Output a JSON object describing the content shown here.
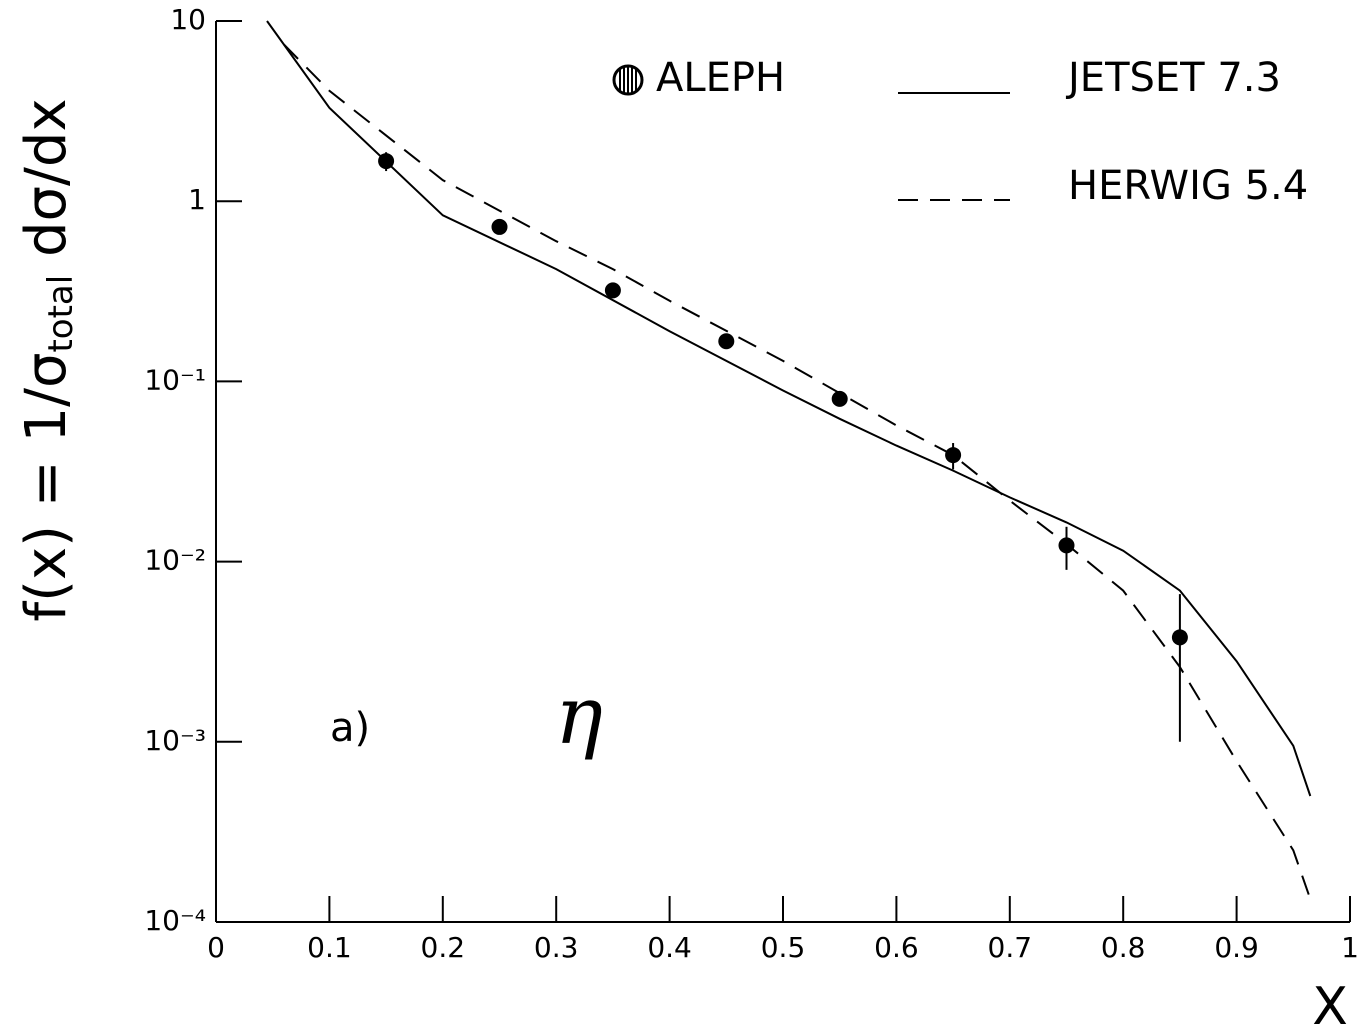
{
  "chart_data": {
    "type": "scatter",
    "x_label": "X",
    "y_label": "f(x) = 1/σ",
    "y_label_sub": "total",
    "y_label_end": " dσ/dx",
    "xlim": [
      0,
      1
    ],
    "ylim": [
      0.0001,
      10
    ],
    "log_y": true,
    "xticks": [
      0,
      0.1,
      0.2,
      0.3,
      0.4,
      0.5,
      0.6,
      0.7,
      0.8,
      0.9,
      1
    ],
    "yticks": [
      {
        "value": 0.0001,
        "label": "10⁻⁴"
      },
      {
        "value": 0.001,
        "label": "10⁻³"
      },
      {
        "value": 0.01,
        "label": "10⁻²"
      },
      {
        "value": 0.1,
        "label": "10⁻¹"
      },
      1,
      10
    ],
    "series": [
      {
        "name": "ALEPH",
        "kind": "points",
        "color": "#000000",
        "x": [
          0.15,
          0.25,
          0.35,
          0.45,
          0.55,
          0.65,
          0.75,
          0.85
        ],
        "values": [
          1.67,
          0.72,
          0.32,
          0.167,
          0.08,
          0.039,
          0.0123,
          0.0038
        ],
        "errors": [
          0.2,
          0.05,
          0.02,
          0.015,
          0.006,
          0.0065,
          0.0033,
          0.0028
        ]
      },
      {
        "name": "JETSET 7.3",
        "kind": "line",
        "dashed": false,
        "color": "#000000",
        "x": [
          0.045,
          0.1,
          0.2,
          0.3,
          0.4,
          0.5,
          0.55,
          0.6,
          0.65,
          0.7,
          0.75,
          0.8,
          0.85,
          0.9,
          0.95,
          0.965
        ],
        "values": [
          10,
          3.3,
          0.835,
          0.42,
          0.19,
          0.089,
          0.062,
          0.044,
          0.032,
          0.0227,
          0.0165,
          0.0115,
          0.0069,
          0.0028,
          0.00095,
          0.0005
        ]
      },
      {
        "name": "HERWIG 5.4",
        "kind": "line",
        "dashed": true,
        "color": "#000000",
        "x": [
          0.06,
          0.1,
          0.2,
          0.3,
          0.35,
          0.4,
          0.5,
          0.6,
          0.65,
          0.7,
          0.75,
          0.8,
          0.85,
          0.9,
          0.95,
          0.965
        ],
        "values": [
          7.4,
          4.1,
          1.31,
          0.6,
          0.42,
          0.28,
          0.13,
          0.057,
          0.039,
          0.0218,
          0.0125,
          0.0069,
          0.0026,
          0.00078,
          0.00025,
          0.000134
        ]
      }
    ],
    "annotations": [
      "a)",
      "η"
    ]
  }
}
